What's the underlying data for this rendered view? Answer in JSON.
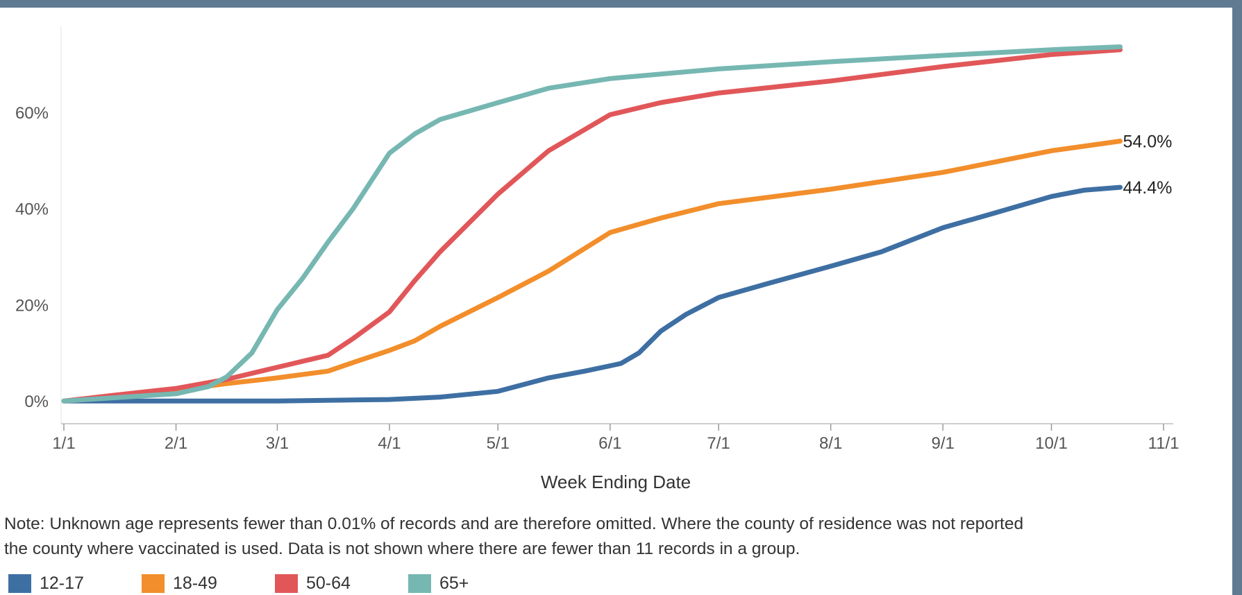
{
  "chart_data": {
    "type": "line",
    "xlabel": "Week Ending Date",
    "ylabel": "",
    "x_axis": {
      "type": "date",
      "start": "2021-01-01",
      "end": "2021-11-01",
      "ticks": [
        {
          "label": "1/1",
          "date": "2021-01-01"
        },
        {
          "label": "2/1",
          "date": "2021-02-01"
        },
        {
          "label": "3/1",
          "date": "2021-03-01"
        },
        {
          "label": "4/1",
          "date": "2021-04-01"
        },
        {
          "label": "5/1",
          "date": "2021-05-01"
        },
        {
          "label": "6/1",
          "date": "2021-06-01"
        },
        {
          "label": "7/1",
          "date": "2021-07-01"
        },
        {
          "label": "8/1",
          "date": "2021-08-01"
        },
        {
          "label": "9/1",
          "date": "2021-09-01"
        },
        {
          "label": "10/1",
          "date": "2021-10-01"
        },
        {
          "label": "11/1",
          "date": "2021-11-01"
        }
      ]
    },
    "y_axis": {
      "min": -3,
      "max": 78,
      "ticks": [
        {
          "label": "0%",
          "value": 0
        },
        {
          "label": "20%",
          "value": 20
        },
        {
          "label": "40%",
          "value": 40
        },
        {
          "label": "60%",
          "value": 60
        }
      ]
    },
    "grid": false,
    "legend_position": "bottom-left",
    "series": [
      {
        "name": "12-17",
        "color": "#3e6fa3",
        "end_label": "44.4%",
        "points": [
          [
            "2021-01-01",
            0
          ],
          [
            "2021-02-01",
            0
          ],
          [
            "2021-03-01",
            0
          ],
          [
            "2021-04-01",
            0.3
          ],
          [
            "2021-04-15",
            0.8
          ],
          [
            "2021-05-01",
            2
          ],
          [
            "2021-05-15",
            4.8
          ],
          [
            "2021-05-25",
            6.2
          ],
          [
            "2021-06-01",
            7.3
          ],
          [
            "2021-06-04",
            7.8
          ],
          [
            "2021-06-09",
            10
          ],
          [
            "2021-06-15",
            14.5
          ],
          [
            "2021-06-22",
            18
          ],
          [
            "2021-07-01",
            21.5
          ],
          [
            "2021-07-15",
            24.5
          ],
          [
            "2021-08-01",
            28
          ],
          [
            "2021-08-15",
            31
          ],
          [
            "2021-09-01",
            36
          ],
          [
            "2021-09-15",
            39
          ],
          [
            "2021-10-01",
            42.5
          ],
          [
            "2021-10-10",
            43.8
          ],
          [
            "2021-10-20",
            44.4
          ]
        ]
      },
      {
        "name": "18-49",
        "color": "#f28e2b",
        "end_label": "54.0%",
        "points": [
          [
            "2021-01-01",
            0
          ],
          [
            "2021-01-15",
            0.8
          ],
          [
            "2021-02-01",
            2.2
          ],
          [
            "2021-02-15",
            3.6
          ],
          [
            "2021-03-01",
            4.8
          ],
          [
            "2021-03-15",
            6.2
          ],
          [
            "2021-03-22",
            8
          ],
          [
            "2021-04-01",
            10.5
          ],
          [
            "2021-04-08",
            12.5
          ],
          [
            "2021-04-15",
            15.5
          ],
          [
            "2021-05-01",
            21.5
          ],
          [
            "2021-05-15",
            27
          ],
          [
            "2021-06-01",
            35
          ],
          [
            "2021-06-15",
            38
          ],
          [
            "2021-07-01",
            41
          ],
          [
            "2021-08-01",
            44
          ],
          [
            "2021-09-01",
            47.5
          ],
          [
            "2021-10-01",
            52
          ],
          [
            "2021-10-20",
            54
          ]
        ]
      },
      {
        "name": "50-64",
        "color": "#e15759",
        "end_label": "",
        "points": [
          [
            "2021-01-01",
            0
          ],
          [
            "2021-01-15",
            1.2
          ],
          [
            "2021-02-01",
            2.6
          ],
          [
            "2021-02-15",
            4.5
          ],
          [
            "2021-03-01",
            7
          ],
          [
            "2021-03-15",
            9.5
          ],
          [
            "2021-03-22",
            13
          ],
          [
            "2021-04-01",
            18.5
          ],
          [
            "2021-04-08",
            25
          ],
          [
            "2021-04-15",
            31
          ],
          [
            "2021-05-01",
            43
          ],
          [
            "2021-05-15",
            52
          ],
          [
            "2021-06-01",
            59.5
          ],
          [
            "2021-06-15",
            62
          ],
          [
            "2021-07-01",
            64
          ],
          [
            "2021-08-01",
            66.5
          ],
          [
            "2021-09-01",
            69.5
          ],
          [
            "2021-10-01",
            72
          ],
          [
            "2021-10-20",
            73
          ]
        ]
      },
      {
        "name": "65+",
        "color": "#76b7b2",
        "end_label": "",
        "points": [
          [
            "2021-01-01",
            0
          ],
          [
            "2021-02-01",
            1.5
          ],
          [
            "2021-02-10",
            3
          ],
          [
            "2021-02-15",
            5
          ],
          [
            "2021-02-22",
            10
          ],
          [
            "2021-03-01",
            19
          ],
          [
            "2021-03-08",
            25.5
          ],
          [
            "2021-03-15",
            33
          ],
          [
            "2021-03-22",
            40
          ],
          [
            "2021-04-01",
            51.5
          ],
          [
            "2021-04-08",
            55.5
          ],
          [
            "2021-04-15",
            58.5
          ],
          [
            "2021-05-01",
            62
          ],
          [
            "2021-05-15",
            65
          ],
          [
            "2021-06-01",
            67
          ],
          [
            "2021-07-01",
            69
          ],
          [
            "2021-08-01",
            70.5
          ],
          [
            "2021-09-01",
            71.8
          ],
          [
            "2021-10-01",
            73
          ],
          [
            "2021-10-20",
            73.6
          ]
        ]
      }
    ]
  },
  "note": {
    "line1": "Note: Unknown age represents fewer than 0.01% of records and are therefore omitted. Where the county of residence was not reported",
    "line2": "the county where vaccinated is used. Data is not shown where there are fewer than 11 records in a group."
  },
  "legend": [
    {
      "label": "12-17",
      "color": "#3e6fa3"
    },
    {
      "label": "18-49",
      "color": "#f28e2b"
    },
    {
      "label": "50-64",
      "color": "#e15759"
    },
    {
      "label": "65+",
      "color": "#76b7b2"
    }
  ]
}
